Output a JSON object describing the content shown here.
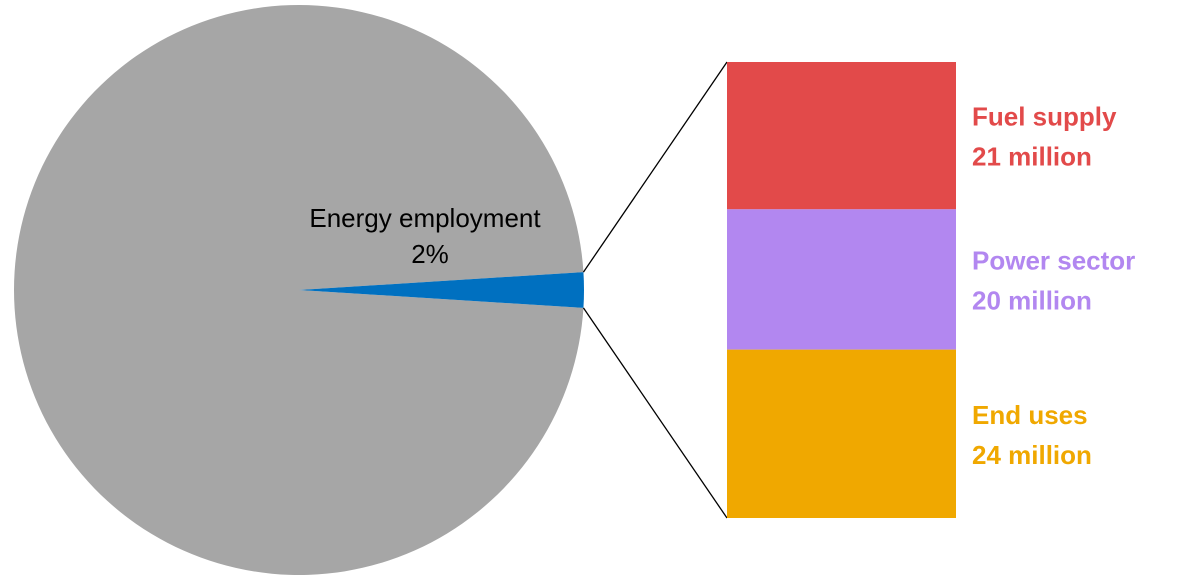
{
  "chart_data": {
    "type": "pie",
    "pie": {
      "slices": [
        {
          "name": "",
          "percent": 98,
          "color": "#a6a6a6"
        },
        {
          "name": "Energy employment",
          "percent": 2,
          "color": "#0070c0",
          "label_line1": "Energy employment",
          "label_line2": "2%"
        }
      ]
    },
    "breakdown": {
      "type": "stacked-bar",
      "unit": "million",
      "segments": [
        {
          "name": "Fuel supply",
          "value": 21,
          "value_label": "21 million",
          "color": "#e24a4a"
        },
        {
          "name": "Power sector",
          "value": 20,
          "value_label": "20 million",
          "color": "#b287f0"
        },
        {
          "name": "End uses",
          "value": 24,
          "value_label": "24 million",
          "color": "#f0a800"
        }
      ]
    }
  }
}
